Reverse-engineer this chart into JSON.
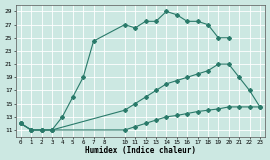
{
  "xlabel": "Humidex (Indice chaleur)",
  "bg_color": "#cce8e2",
  "grid_color": "#b0d8d0",
  "line_color": "#2a7a6a",
  "xlim": [
    -0.5,
    23.5
  ],
  "ylim": [
    10,
    30
  ],
  "xtick_vals": [
    0,
    1,
    2,
    3,
    4,
    5,
    6,
    7,
    8,
    10,
    11,
    12,
    13,
    14,
    15,
    16,
    17,
    18,
    19,
    20,
    21,
    22,
    23
  ],
  "ytick_vals": [
    11,
    13,
    15,
    17,
    19,
    21,
    23,
    25,
    27,
    29
  ],
  "s1_x": [
    0,
    1,
    2,
    3,
    4,
    5,
    6,
    7,
    10,
    11,
    12,
    13,
    14,
    15,
    16,
    17,
    18,
    19,
    20
  ],
  "s1_y": [
    12,
    11,
    11,
    11,
    13,
    16,
    19,
    24.5,
    27,
    26.5,
    27.5,
    27.5,
    29,
    28.5,
    27.5,
    27.5,
    27,
    25,
    25
  ],
  "s2_x": [
    0,
    1,
    2,
    3,
    10,
    11,
    12,
    13,
    14,
    15,
    16,
    17,
    18,
    19,
    20,
    21,
    22,
    23
  ],
  "s2_y": [
    12,
    11,
    11,
    11,
    14,
    15,
    16,
    17,
    18,
    18.5,
    19,
    19.5,
    20,
    21,
    21,
    19,
    17,
    14.5
  ],
  "s3_x": [
    0,
    1,
    2,
    3,
    10,
    11,
    12,
    13,
    14,
    15,
    16,
    17,
    18,
    19,
    20,
    21,
    22,
    23
  ],
  "s3_y": [
    12,
    11,
    11,
    11,
    11,
    11.5,
    12,
    12.5,
    13,
    13.2,
    13.5,
    13.8,
    14,
    14.2,
    14.5,
    14.5,
    14.5,
    14.5
  ]
}
